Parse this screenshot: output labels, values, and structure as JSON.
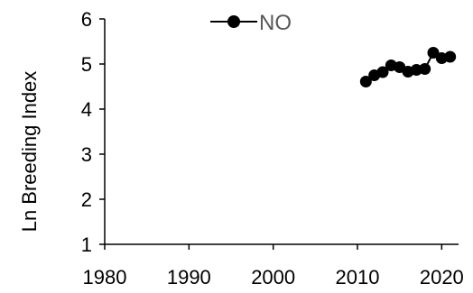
{
  "chart_data": {
    "type": "line",
    "ylabel": "Ln Breeding Index",
    "xlim": [
      1980,
      2022
    ],
    "ylim": [
      1,
      6
    ],
    "x_ticks": [
      1980,
      1990,
      2000,
      2010,
      2020
    ],
    "y_ticks": [
      1,
      2,
      3,
      4,
      5,
      6
    ],
    "grid": false,
    "legend_position": "top-center",
    "series": [
      {
        "name": "NO",
        "color": "#000000",
        "marker": "circle",
        "x": [
          2011,
          2012,
          2013,
          2014,
          2015,
          2016,
          2017,
          2018,
          2019,
          2020,
          2021
        ],
        "y": [
          4.61,
          4.75,
          4.82,
          4.97,
          4.93,
          4.83,
          4.87,
          4.89,
          5.25,
          5.13,
          5.16
        ]
      }
    ]
  }
}
